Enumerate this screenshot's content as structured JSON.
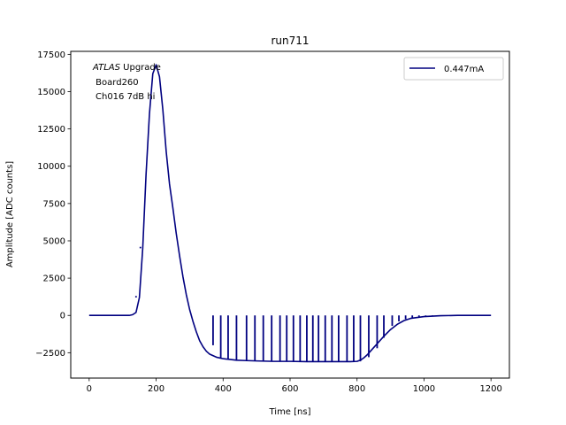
{
  "chart_data": {
    "type": "line",
    "title": "run711",
    "xlabel": "Time [ns]",
    "ylabel": "Amplitude [ADC counts]",
    "xlim": [
      -55,
      1255
    ],
    "ylim": [
      -4200,
      17700
    ],
    "xticks": [
      0,
      200,
      400,
      600,
      800,
      1000,
      1200
    ],
    "yticks": [
      -2500,
      0,
      2500,
      5000,
      7500,
      10000,
      12500,
      15000,
      17500
    ],
    "xtick_labels": [
      "0",
      "200",
      "400",
      "600",
      "800",
      "1000",
      "1200"
    ],
    "ytick_labels": [
      "−2500",
      "0",
      "2500",
      "5000",
      "7500",
      "10000",
      "12500",
      "15000",
      "17500"
    ],
    "grid": false,
    "legend_position": "top-right",
    "annotations": {
      "line1_italic": "ATLAS",
      "line1_rest": " Upgrade",
      "line2": " Board260",
      "line3": "Ch016 7dB hi"
    },
    "colors": {
      "series": "#000080"
    },
    "series": [
      {
        "name": "0.447mA",
        "x": [
          0,
          100,
          120,
          130,
          140,
          150,
          160,
          170,
          180,
          190,
          200,
          210,
          220,
          230,
          240,
          250,
          260,
          270,
          280,
          290,
          300,
          310,
          320,
          330,
          340,
          350,
          360,
          380,
          400,
          420,
          440,
          460,
          500,
          550,
          600,
          650,
          700,
          750,
          780,
          800,
          810,
          820,
          830,
          840,
          850,
          860,
          880,
          900,
          920,
          940,
          960,
          1000,
          1050,
          1100,
          1150,
          1200
        ],
        "y": [
          0,
          0,
          0,
          50,
          200,
          1200,
          4500,
          9500,
          13500,
          16200,
          16800,
          16000,
          13800,
          11000,
          8800,
          7200,
          5500,
          4000,
          2600,
          1400,
          400,
          -400,
          -1100,
          -1700,
          -2100,
          -2400,
          -2600,
          -2800,
          -2900,
          -2950,
          -3000,
          -3020,
          -3050,
          -3080,
          -3080,
          -3100,
          -3100,
          -3100,
          -3100,
          -3080,
          -3000,
          -2850,
          -2650,
          -2400,
          -2150,
          -1900,
          -1400,
          -950,
          -600,
          -350,
          -200,
          -80,
          -20,
          0,
          0,
          0
        ]
      }
    ],
    "sample_spikes": {
      "x": [
        140,
        153,
        175,
        200,
        225,
        258,
        290,
        322,
        345,
        370,
        393,
        415,
        440,
        470,
        495,
        520,
        545,
        570,
        590,
        610,
        630,
        650,
        668,
        685,
        705,
        725,
        745,
        770,
        790,
        810,
        835,
        860,
        880,
        905,
        925,
        945,
        965,
        985,
        1005,
        1025
      ],
      "y": [
        1200,
        4500,
        11500,
        16900,
        16500,
        7500,
        4000,
        700,
        0,
        -2000,
        -2900,
        -2900,
        -3000,
        -3000,
        -3050,
        -3050,
        -3050,
        -3080,
        -3080,
        -3080,
        -3080,
        -3080,
        -3100,
        -3100,
        -3100,
        -3100,
        -3100,
        -3100,
        -3100,
        -3080,
        -2800,
        -2200,
        -1500,
        -700,
        -400,
        -250,
        -150,
        -80,
        -40,
        -20
      ],
      "top": [
        1300,
        4600,
        11500,
        16900,
        16500,
        7500,
        4000,
        700,
        0,
        0,
        0,
        0,
        0,
        0,
        0,
        0,
        0,
        0,
        0,
        0,
        0,
        0,
        0,
        0,
        0,
        0,
        0,
        0,
        0,
        0,
        0,
        0,
        0,
        0,
        0,
        0,
        0,
        0,
        0,
        0
      ]
    }
  }
}
